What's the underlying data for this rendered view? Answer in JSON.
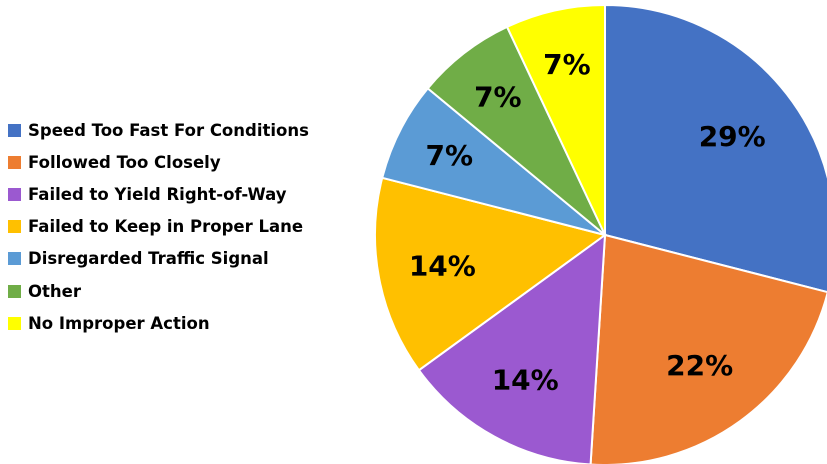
{
  "chart_data": {
    "type": "pie",
    "title": "",
    "legend_position": "left",
    "start_angle": "12 o'clock, clockwise",
    "slices": [
      {
        "name": "Speed Too Fast For Conditions",
        "value": 29,
        "label": "29%",
        "color": "#4472C4"
      },
      {
        "name": "Followed Too Closely",
        "value": 22,
        "label": "22%",
        "color": "#ED7D31"
      },
      {
        "name": "Failed to Yield Right-of-Way",
        "value": 14,
        "label": "14%",
        "color": "#9B59D0"
      },
      {
        "name": "Failed to Keep in Proper Lane",
        "value": 14,
        "label": "14%",
        "color": "#FFC000"
      },
      {
        "name": "Disregarded Traffic Signal",
        "value": 7,
        "label": "7%",
        "color": "#5B9BD5"
      },
      {
        "name": "Other",
        "value": 7,
        "label": "7%",
        "color": "#70AD47"
      },
      {
        "name": "No Improper Action",
        "value": 7,
        "label": "7%",
        "color": "#FFFF00"
      }
    ]
  }
}
